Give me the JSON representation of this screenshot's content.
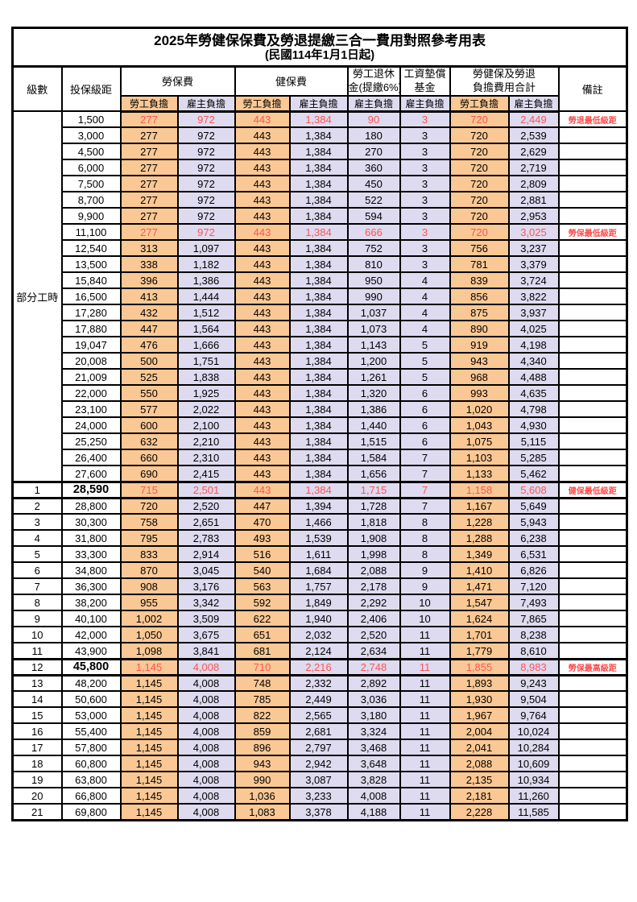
{
  "page": {
    "title": "2025年勞健保保費及勞退提繳三合一費用對照參考用表",
    "subtitle": "(民國114年1月1日起)"
  },
  "colors": {
    "employee_bg": "#FAC894",
    "employer_bg": "#DEDAEF",
    "highlight_text": "#FF5454",
    "remark_text": "#FF4A4A",
    "border": "#000000"
  },
  "table": {
    "headers": {
      "level": "級數",
      "salary": "投保級距",
      "labor": "勞保費",
      "health": "健保費",
      "pension_l1": "勞工退休",
      "pension_l2": "金(提繳6%)",
      "fund_l1": "工資墊償",
      "fund_l2": "基金",
      "total_l1": "勞健保及勞退",
      "total_l2": "負擔費用合計",
      "remark": "備註",
      "employee": "勞工負擔",
      "employer": "雇主負擔"
    },
    "group_label": "部分工時",
    "group_rows": 23,
    "rows": [
      {
        "level": "",
        "salary": "1,500",
        "labor_emp": "277",
        "labor_er": "972",
        "health_emp": "443",
        "health_er": "1,384",
        "pension_er": "90",
        "fund_er": "3",
        "total_emp": "720",
        "total_er": "2,449",
        "remark": "勞退最低級距",
        "hl": true,
        "bold": false,
        "thick": false
      },
      {
        "level": "",
        "salary": "3,000",
        "labor_emp": "277",
        "labor_er": "972",
        "health_emp": "443",
        "health_er": "1,384",
        "pension_er": "180",
        "fund_er": "3",
        "total_emp": "720",
        "total_er": "2,539",
        "remark": "",
        "hl": false,
        "bold": false,
        "thick": false
      },
      {
        "level": "",
        "salary": "4,500",
        "labor_emp": "277",
        "labor_er": "972",
        "health_emp": "443",
        "health_er": "1,384",
        "pension_er": "270",
        "fund_er": "3",
        "total_emp": "720",
        "total_er": "2,629",
        "remark": "",
        "hl": false,
        "bold": false,
        "thick": false
      },
      {
        "level": "",
        "salary": "6,000",
        "labor_emp": "277",
        "labor_er": "972",
        "health_emp": "443",
        "health_er": "1,384",
        "pension_er": "360",
        "fund_er": "3",
        "total_emp": "720",
        "total_er": "2,719",
        "remark": "",
        "hl": false,
        "bold": false,
        "thick": false
      },
      {
        "level": "",
        "salary": "7,500",
        "labor_emp": "277",
        "labor_er": "972",
        "health_emp": "443",
        "health_er": "1,384",
        "pension_er": "450",
        "fund_er": "3",
        "total_emp": "720",
        "total_er": "2,809",
        "remark": "",
        "hl": false,
        "bold": false,
        "thick": false
      },
      {
        "level": "",
        "salary": "8,700",
        "labor_emp": "277",
        "labor_er": "972",
        "health_emp": "443",
        "health_er": "1,384",
        "pension_er": "522",
        "fund_er": "3",
        "total_emp": "720",
        "total_er": "2,881",
        "remark": "",
        "hl": false,
        "bold": false,
        "thick": false
      },
      {
        "level": "",
        "salary": "9,900",
        "labor_emp": "277",
        "labor_er": "972",
        "health_emp": "443",
        "health_er": "1,384",
        "pension_er": "594",
        "fund_er": "3",
        "total_emp": "720",
        "total_er": "2,953",
        "remark": "",
        "hl": false,
        "bold": false,
        "thick": false
      },
      {
        "level": "",
        "salary": "11,100",
        "labor_emp": "277",
        "labor_er": "972",
        "health_emp": "443",
        "health_er": "1,384",
        "pension_er": "666",
        "fund_er": "3",
        "total_emp": "720",
        "total_er": "3,025",
        "remark": "勞保最低級距",
        "hl": true,
        "bold": false,
        "thick": false
      },
      {
        "level": "",
        "salary": "12,540",
        "labor_emp": "313",
        "labor_er": "1,097",
        "health_emp": "443",
        "health_er": "1,384",
        "pension_er": "752",
        "fund_er": "3",
        "total_emp": "756",
        "total_er": "3,237",
        "remark": "",
        "hl": false,
        "bold": false,
        "thick": false
      },
      {
        "level": "",
        "salary": "13,500",
        "labor_emp": "338",
        "labor_er": "1,182",
        "health_emp": "443",
        "health_er": "1,384",
        "pension_er": "810",
        "fund_er": "3",
        "total_emp": "781",
        "total_er": "3,379",
        "remark": "",
        "hl": false,
        "bold": false,
        "thick": false
      },
      {
        "level": "",
        "salary": "15,840",
        "labor_emp": "396",
        "labor_er": "1,386",
        "health_emp": "443",
        "health_er": "1,384",
        "pension_er": "950",
        "fund_er": "4",
        "total_emp": "839",
        "total_er": "3,724",
        "remark": "",
        "hl": false,
        "bold": false,
        "thick": false
      },
      {
        "level": "",
        "salary": "16,500",
        "labor_emp": "413",
        "labor_er": "1,444",
        "health_emp": "443",
        "health_er": "1,384",
        "pension_er": "990",
        "fund_er": "4",
        "total_emp": "856",
        "total_er": "3,822",
        "remark": "",
        "hl": false,
        "bold": false,
        "thick": false
      },
      {
        "level": "",
        "salary": "17,280",
        "labor_emp": "432",
        "labor_er": "1,512",
        "health_emp": "443",
        "health_er": "1,384",
        "pension_er": "1,037",
        "fund_er": "4",
        "total_emp": "875",
        "total_er": "3,937",
        "remark": "",
        "hl": false,
        "bold": false,
        "thick": false
      },
      {
        "level": "",
        "salary": "17,880",
        "labor_emp": "447",
        "labor_er": "1,564",
        "health_emp": "443",
        "health_er": "1,384",
        "pension_er": "1,073",
        "fund_er": "4",
        "total_emp": "890",
        "total_er": "4,025",
        "remark": "",
        "hl": false,
        "bold": false,
        "thick": false
      },
      {
        "level": "",
        "salary": "19,047",
        "labor_emp": "476",
        "labor_er": "1,666",
        "health_emp": "443",
        "health_er": "1,384",
        "pension_er": "1,143",
        "fund_er": "5",
        "total_emp": "919",
        "total_er": "4,198",
        "remark": "",
        "hl": false,
        "bold": false,
        "thick": false
      },
      {
        "level": "",
        "salary": "20,008",
        "labor_emp": "500",
        "labor_er": "1,751",
        "health_emp": "443",
        "health_er": "1,384",
        "pension_er": "1,200",
        "fund_er": "5",
        "total_emp": "943",
        "total_er": "4,340",
        "remark": "",
        "hl": false,
        "bold": false,
        "thick": false
      },
      {
        "level": "",
        "salary": "21,009",
        "labor_emp": "525",
        "labor_er": "1,838",
        "health_emp": "443",
        "health_er": "1,384",
        "pension_er": "1,261",
        "fund_er": "5",
        "total_emp": "968",
        "total_er": "4,488",
        "remark": "",
        "hl": false,
        "bold": false,
        "thick": false
      },
      {
        "level": "",
        "salary": "22,000",
        "labor_emp": "550",
        "labor_er": "1,925",
        "health_emp": "443",
        "health_er": "1,384",
        "pension_er": "1,320",
        "fund_er": "6",
        "total_emp": "993",
        "total_er": "4,635",
        "remark": "",
        "hl": false,
        "bold": false,
        "thick": false
      },
      {
        "level": "",
        "salary": "23,100",
        "labor_emp": "577",
        "labor_er": "2,022",
        "health_emp": "443",
        "health_er": "1,384",
        "pension_er": "1,386",
        "fund_er": "6",
        "total_emp": "1,020",
        "total_er": "4,798",
        "remark": "",
        "hl": false,
        "bold": false,
        "thick": false
      },
      {
        "level": "",
        "salary": "24,000",
        "labor_emp": "600",
        "labor_er": "2,100",
        "health_emp": "443",
        "health_er": "1,384",
        "pension_er": "1,440",
        "fund_er": "6",
        "total_emp": "1,043",
        "total_er": "4,930",
        "remark": "",
        "hl": false,
        "bold": false,
        "thick": false
      },
      {
        "level": "",
        "salary": "25,250",
        "labor_emp": "632",
        "labor_er": "2,210",
        "health_emp": "443",
        "health_er": "1,384",
        "pension_er": "1,515",
        "fund_er": "6",
        "total_emp": "1,075",
        "total_er": "5,115",
        "remark": "",
        "hl": false,
        "bold": false,
        "thick": false
      },
      {
        "level": "",
        "salary": "26,400",
        "labor_emp": "660",
        "labor_er": "2,310",
        "health_emp": "443",
        "health_er": "1,384",
        "pension_er": "1,584",
        "fund_er": "7",
        "total_emp": "1,103",
        "total_er": "5,285",
        "remark": "",
        "hl": false,
        "bold": false,
        "thick": false
      },
      {
        "level": "",
        "salary": "27,600",
        "labor_emp": "690",
        "labor_er": "2,415",
        "health_emp": "443",
        "health_er": "1,384",
        "pension_er": "1,656",
        "fund_er": "7",
        "total_emp": "1,133",
        "total_er": "5,462",
        "remark": "",
        "hl": false,
        "bold": false,
        "thick": false
      },
      {
        "level": "1",
        "salary": "28,590",
        "labor_emp": "715",
        "labor_er": "2,501",
        "health_emp": "443",
        "health_er": "1,384",
        "pension_er": "1,715",
        "fund_er": "7",
        "total_emp": "1,158",
        "total_er": "5,608",
        "remark": "健保最低級距",
        "hl": true,
        "bold": true,
        "thick": true
      },
      {
        "level": "2",
        "salary": "28,800",
        "labor_emp": "720",
        "labor_er": "2,520",
        "health_emp": "447",
        "health_er": "1,394",
        "pension_er": "1,728",
        "fund_er": "7",
        "total_emp": "1,167",
        "total_er": "5,649",
        "remark": "",
        "hl": false,
        "bold": false,
        "thick": false
      },
      {
        "level": "3",
        "salary": "30,300",
        "labor_emp": "758",
        "labor_er": "2,651",
        "health_emp": "470",
        "health_er": "1,466",
        "pension_er": "1,818",
        "fund_er": "8",
        "total_emp": "1,228",
        "total_er": "5,943",
        "remark": "",
        "hl": false,
        "bold": false,
        "thick": false
      },
      {
        "level": "4",
        "salary": "31,800",
        "labor_emp": "795",
        "labor_er": "2,783",
        "health_emp": "493",
        "health_er": "1,539",
        "pension_er": "1,908",
        "fund_er": "8",
        "total_emp": "1,288",
        "total_er": "6,238",
        "remark": "",
        "hl": false,
        "bold": false,
        "thick": false
      },
      {
        "level": "5",
        "salary": "33,300",
        "labor_emp": "833",
        "labor_er": "2,914",
        "health_emp": "516",
        "health_er": "1,611",
        "pension_er": "1,998",
        "fund_er": "8",
        "total_emp": "1,349",
        "total_er": "6,531",
        "remark": "",
        "hl": false,
        "bold": false,
        "thick": false
      },
      {
        "level": "6",
        "salary": "34,800",
        "labor_emp": "870",
        "labor_er": "3,045",
        "health_emp": "540",
        "health_er": "1,684",
        "pension_er": "2,088",
        "fund_er": "9",
        "total_emp": "1,410",
        "total_er": "6,826",
        "remark": "",
        "hl": false,
        "bold": false,
        "thick": false
      },
      {
        "level": "7",
        "salary": "36,300",
        "labor_emp": "908",
        "labor_er": "3,176",
        "health_emp": "563",
        "health_er": "1,757",
        "pension_er": "2,178",
        "fund_er": "9",
        "total_emp": "1,471",
        "total_er": "7,120",
        "remark": "",
        "hl": false,
        "bold": false,
        "thick": false
      },
      {
        "level": "8",
        "salary": "38,200",
        "labor_emp": "955",
        "labor_er": "3,342",
        "health_emp": "592",
        "health_er": "1,849",
        "pension_er": "2,292",
        "fund_er": "10",
        "total_emp": "1,547",
        "total_er": "7,493",
        "remark": "",
        "hl": false,
        "bold": false,
        "thick": false
      },
      {
        "level": "9",
        "salary": "40,100",
        "labor_emp": "1,002",
        "labor_er": "3,509",
        "health_emp": "622",
        "health_er": "1,940",
        "pension_er": "2,406",
        "fund_er": "10",
        "total_emp": "1,624",
        "total_er": "7,865",
        "remark": "",
        "hl": false,
        "bold": false,
        "thick": false
      },
      {
        "level": "10",
        "salary": "42,000",
        "labor_emp": "1,050",
        "labor_er": "3,675",
        "health_emp": "651",
        "health_er": "2,032",
        "pension_er": "2,520",
        "fund_er": "11",
        "total_emp": "1,701",
        "total_er": "8,238",
        "remark": "",
        "hl": false,
        "bold": false,
        "thick": false
      },
      {
        "level": "11",
        "salary": "43,900",
        "labor_emp": "1,098",
        "labor_er": "3,841",
        "health_emp": "681",
        "health_er": "2,124",
        "pension_er": "2,634",
        "fund_er": "11",
        "total_emp": "1,779",
        "total_er": "8,610",
        "remark": "",
        "hl": false,
        "bold": false,
        "thick": false
      },
      {
        "level": "12",
        "salary": "45,800",
        "labor_emp": "1,145",
        "labor_er": "4,008",
        "health_emp": "710",
        "health_er": "2,216",
        "pension_er": "2,748",
        "fund_er": "11",
        "total_emp": "1,855",
        "total_er": "8,983",
        "remark": "勞保最高級距",
        "hl": true,
        "bold": true,
        "thick": true
      },
      {
        "level": "13",
        "salary": "48,200",
        "labor_emp": "1,145",
        "labor_er": "4,008",
        "health_emp": "748",
        "health_er": "2,332",
        "pension_er": "2,892",
        "fund_er": "11",
        "total_emp": "1,893",
        "total_er": "9,243",
        "remark": "",
        "hl": false,
        "bold": false,
        "thick": false
      },
      {
        "level": "14",
        "salary": "50,600",
        "labor_emp": "1,145",
        "labor_er": "4,008",
        "health_emp": "785",
        "health_er": "2,449",
        "pension_er": "3,036",
        "fund_er": "11",
        "total_emp": "1,930",
        "total_er": "9,504",
        "remark": "",
        "hl": false,
        "bold": false,
        "thick": false
      },
      {
        "level": "15",
        "salary": "53,000",
        "labor_emp": "1,145",
        "labor_er": "4,008",
        "health_emp": "822",
        "health_er": "2,565",
        "pension_er": "3,180",
        "fund_er": "11",
        "total_emp": "1,967",
        "total_er": "9,764",
        "remark": "",
        "hl": false,
        "bold": false,
        "thick": false
      },
      {
        "level": "16",
        "salary": "55,400",
        "labor_emp": "1,145",
        "labor_er": "4,008",
        "health_emp": "859",
        "health_er": "2,681",
        "pension_er": "3,324",
        "fund_er": "11",
        "total_emp": "2,004",
        "total_er": "10,024",
        "remark": "",
        "hl": false,
        "bold": false,
        "thick": false
      },
      {
        "level": "17",
        "salary": "57,800",
        "labor_emp": "1,145",
        "labor_er": "4,008",
        "health_emp": "896",
        "health_er": "2,797",
        "pension_er": "3,468",
        "fund_er": "11",
        "total_emp": "2,041",
        "total_er": "10,284",
        "remark": "",
        "hl": false,
        "bold": false,
        "thick": false
      },
      {
        "level": "18",
        "salary": "60,800",
        "labor_emp": "1,145",
        "labor_er": "4,008",
        "health_emp": "943",
        "health_er": "2,942",
        "pension_er": "3,648",
        "fund_er": "11",
        "total_emp": "2,088",
        "total_er": "10,609",
        "remark": "",
        "hl": false,
        "bold": false,
        "thick": false
      },
      {
        "level": "19",
        "salary": "63,800",
        "labor_emp": "1,145",
        "labor_er": "4,008",
        "health_emp": "990",
        "health_er": "3,087",
        "pension_er": "3,828",
        "fund_er": "11",
        "total_emp": "2,135",
        "total_er": "10,934",
        "remark": "",
        "hl": false,
        "bold": false,
        "thick": false
      },
      {
        "level": "20",
        "salary": "66,800",
        "labor_emp": "1,145",
        "labor_er": "4,008",
        "health_emp": "1,036",
        "health_er": "3,233",
        "pension_er": "4,008",
        "fund_er": "11",
        "total_emp": "2,181",
        "total_er": "11,260",
        "remark": "",
        "hl": false,
        "bold": false,
        "thick": false
      },
      {
        "level": "21",
        "salary": "69,800",
        "labor_emp": "1,145",
        "labor_er": "4,008",
        "health_emp": "1,083",
        "health_er": "3,378",
        "pension_er": "4,188",
        "fund_er": "11",
        "total_emp": "2,228",
        "total_er": "11,585",
        "remark": "",
        "hl": false,
        "bold": false,
        "thick": false
      }
    ]
  }
}
